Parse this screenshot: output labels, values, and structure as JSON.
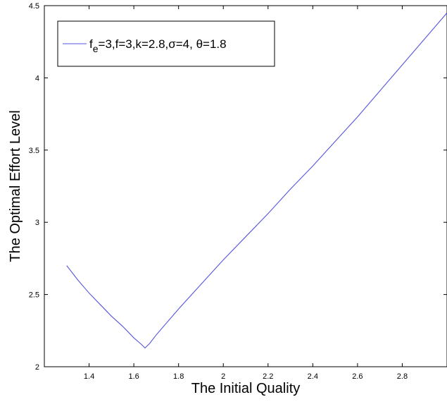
{
  "chart_data": {
    "type": "line",
    "title": "",
    "xlabel": "The Initial Quality",
    "ylabel": "The Optimal Effort Level",
    "xlim": [
      1.2,
      3.0
    ],
    "ylim": [
      2.0,
      4.5
    ],
    "xticks": [
      1.4,
      1.6,
      1.8,
      2.0,
      2.2,
      2.4,
      2.6,
      2.8
    ],
    "xtick_labels": [
      "1.4",
      "1.6",
      "1.8",
      "2",
      "2.2",
      "2.4",
      "2.6",
      "2.8"
    ],
    "yticks": [
      2.0,
      2.5,
      3.0,
      3.5,
      4.0,
      4.5
    ],
    "ytick_labels": [
      "2",
      "2.5",
      "3",
      "3.5",
      "4",
      "4.5"
    ],
    "grid": false,
    "legend_placement": "top-left",
    "series": [
      {
        "name_parts": {
          "base": "f",
          "subscript": "e",
          "rest": "=3,f=3,k=2.8,σ=4, θ=1.8"
        },
        "color": "#5555dd",
        "x": [
          1.3,
          1.35,
          1.4,
          1.45,
          1.5,
          1.55,
          1.6,
          1.63,
          1.65,
          1.67,
          1.7,
          1.8,
          1.9,
          2.0,
          2.1,
          2.2,
          2.3,
          2.4,
          2.5,
          2.6,
          2.7,
          2.8,
          2.9,
          3.0
        ],
        "y": [
          2.7,
          2.6,
          2.51,
          2.43,
          2.35,
          2.28,
          2.2,
          2.16,
          2.13,
          2.16,
          2.22,
          2.4,
          2.57,
          2.74,
          2.9,
          3.06,
          3.23,
          3.39,
          3.56,
          3.73,
          3.91,
          4.09,
          4.27,
          4.45
        ]
      }
    ]
  }
}
